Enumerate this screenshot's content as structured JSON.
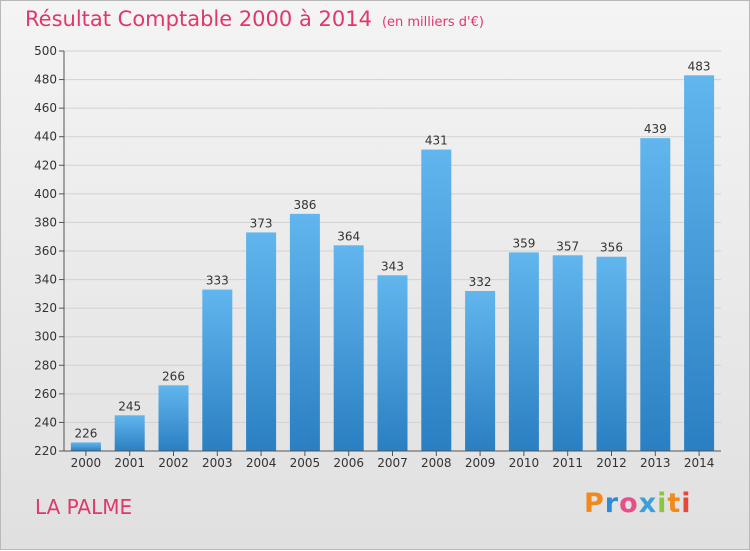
{
  "chart_data": {
    "type": "bar",
    "title": "Résultat Comptable 2000 à 2014",
    "subtitle": "(en milliers d'€)",
    "categories": [
      "2000",
      "2001",
      "2002",
      "2003",
      "2004",
      "2005",
      "2006",
      "2007",
      "2008",
      "2009",
      "2010",
      "2011",
      "2012",
      "2013",
      "2014"
    ],
    "values": [
      226,
      245,
      266,
      333,
      373,
      386,
      364,
      343,
      431,
      332,
      359,
      357,
      356,
      439,
      483
    ],
    "xlabel": "",
    "ylabel": "",
    "ylim": [
      220,
      500
    ],
    "yticks": [
      220,
      240,
      260,
      280,
      300,
      320,
      340,
      360,
      380,
      400,
      420,
      440,
      460,
      480,
      500
    ],
    "grid": true,
    "legend": "none"
  },
  "place": "LA PALME",
  "logo": {
    "letters": [
      "P",
      "r",
      "o",
      "x",
      "i",
      "t",
      "i"
    ],
    "colors": [
      "#f08a1c",
      "#2e8bd8",
      "#e84f8a",
      "#3d9fd6",
      "#8cc63f",
      "#f08a1c",
      "#e8463a"
    ]
  },
  "colors": {
    "title": "#e0386b",
    "bar_top": "#62b6ee",
    "bar_bottom": "#2a7fc2",
    "grid": "#d2d2d2",
    "axis": "#555555",
    "text": "#333333"
  }
}
